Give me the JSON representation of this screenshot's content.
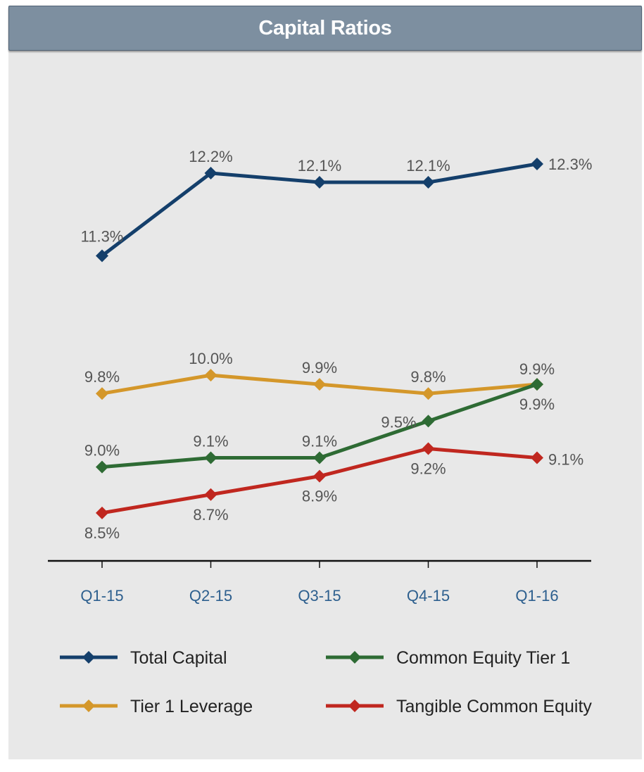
{
  "title": "Capital Ratios",
  "chart_data": {
    "type": "line",
    "title": "Capital Ratios",
    "categories": [
      "Q1-15",
      "Q2-15",
      "Q3-15",
      "Q4-15",
      "Q1-16"
    ],
    "series": [
      {
        "name": "Total Capital",
        "color": "#143f6b",
        "values": [
          11.3,
          12.2,
          12.1,
          12.1,
          12.3
        ],
        "labels": [
          "11.3%",
          "12.2%",
          "12.1%",
          "12.1%",
          "12.3%"
        ]
      },
      {
        "name": "Tier 1 Leverage",
        "color": "#d4972a",
        "values": [
          9.8,
          10.0,
          9.9,
          9.8,
          9.9
        ],
        "labels": [
          "9.8%",
          "10.0%",
          "9.9%",
          "9.8%",
          "9.9%"
        ]
      },
      {
        "name": "Common Equity Tier 1",
        "color": "#2e6b34",
        "values": [
          9.0,
          9.1,
          9.1,
          9.5,
          9.9
        ],
        "labels": [
          "9.0%",
          "9.1%",
          "9.1%",
          "9.5%",
          "9.9%"
        ]
      },
      {
        "name": "Tangible Common Equity",
        "color": "#c0271f",
        "values": [
          8.5,
          8.7,
          8.9,
          9.2,
          9.1
        ],
        "labels": [
          "8.5%",
          "8.7%",
          "8.9%",
          "9.2%",
          "9.1%"
        ]
      }
    ],
    "ylim": [
      7.5,
      13.3
    ],
    "grid": false,
    "legend": "bottom"
  }
}
